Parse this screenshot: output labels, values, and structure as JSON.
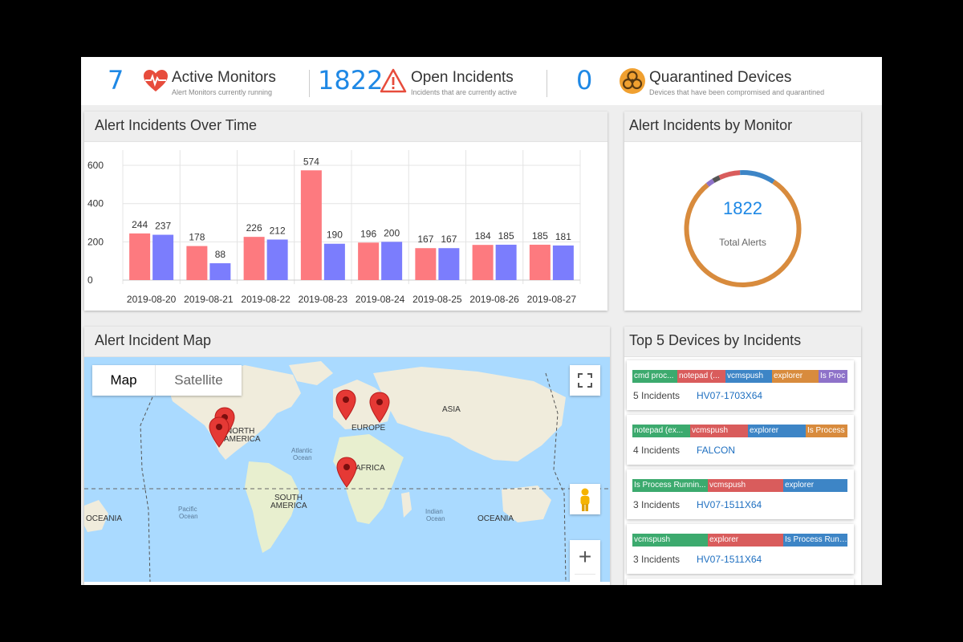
{
  "stats": [
    {
      "value": "7",
      "title": "Active Monitors",
      "subtitle": "Alert Monitors currently running",
      "icon": "heart-pulse-icon"
    },
    {
      "value": "1822",
      "title": "Open Incidents",
      "subtitle": "Incidents that are currently active",
      "icon": "warning-icon"
    },
    {
      "value": "0",
      "title": "Quarantined Devices",
      "subtitle": "Devices that have been compromised and quarantined",
      "icon": "biohazard-icon"
    }
  ],
  "time_card": {
    "title": "Alert Incidents Over Time"
  },
  "chart_data": {
    "type": "bar",
    "categories": [
      "2019-08-20",
      "2019-08-21",
      "2019-08-22",
      "2019-08-23",
      "2019-08-24",
      "2019-08-25",
      "2019-08-26",
      "2019-08-27"
    ],
    "series": [
      {
        "values": [
          244,
          178,
          226,
          574,
          196,
          167,
          184,
          185
        ],
        "color": "#fd7a7f"
      },
      {
        "values": [
          237,
          88,
          212,
          190,
          200,
          167,
          185,
          181
        ],
        "color": "#7b7dfd"
      }
    ],
    "yticks": [
      "0",
      "200",
      "400",
      "600"
    ],
    "ylim": [
      0,
      680
    ],
    "grid": true
  },
  "monitor_card": {
    "title": "Alert Incidents by Monitor",
    "total": "1822",
    "total_label": "Total Alerts"
  },
  "donut": {
    "segments": [
      {
        "value": 0.02,
        "color": "#555555"
      },
      {
        "value": 0.06,
        "color": "#d95c5c"
      },
      {
        "value": 0.1,
        "color": "#3d85c6"
      },
      {
        "value": 0.8,
        "color": "#d88b3d"
      },
      {
        "value": 0.02,
        "color": "#8e72c9"
      }
    ]
  },
  "map_card": {
    "title": "Alert Incident Map",
    "tab_map": "Map",
    "tab_satellite": "Satellite",
    "zoom_in": "+",
    "labels": [
      "NORTH",
      "AMERICA",
      "EUROPE",
      "ASIA",
      "AFRICA",
      "SOUTH",
      "AMERICA",
      "OCEANIA",
      "OCEANIA",
      "Atlantic",
      "Ocean",
      "Pacific",
      "Ocean",
      "Indian",
      "Ocean"
    ]
  },
  "devices_card": {
    "title": "Top 5 Devices by Incidents",
    "devices": [
      {
        "count": "5 Incidents",
        "name": "HV07-1703X64",
        "segments": [
          {
            "label": "cmd proc...",
            "color": "#3caa6e"
          },
          {
            "label": "notepad (...",
            "color": "#d95c5c"
          },
          {
            "label": "vcmspush",
            "color": "#3d85c6"
          },
          {
            "label": "explorer",
            "color": "#d88b3d"
          },
          {
            "label": "Is Proc",
            "color": "#8e72c9"
          }
        ]
      },
      {
        "count": "4 Incidents",
        "name": "FALCON",
        "segments": [
          {
            "label": "notepad (ex...",
            "color": "#3caa6e"
          },
          {
            "label": "vcmspush",
            "color": "#d95c5c"
          },
          {
            "label": "explorer",
            "color": "#3d85c6"
          },
          {
            "label": "Is Process",
            "color": "#d88b3d"
          }
        ]
      },
      {
        "count": "3 Incidents",
        "name": "HV07-1511X64",
        "segments": [
          {
            "label": "Is Process Runnin...",
            "color": "#3caa6e"
          },
          {
            "label": "vcmspush",
            "color": "#d95c5c"
          },
          {
            "label": "explorer",
            "color": "#3d85c6"
          }
        ]
      },
      {
        "count": "3 Incidents",
        "name": "HV07-1511X64",
        "segments": [
          {
            "label": "vcmspush",
            "color": "#3caa6e"
          },
          {
            "label": "explorer",
            "color": "#d95c5c"
          },
          {
            "label": "Is Process Runnin",
            "color": "#3d85c6"
          }
        ]
      }
    ]
  }
}
